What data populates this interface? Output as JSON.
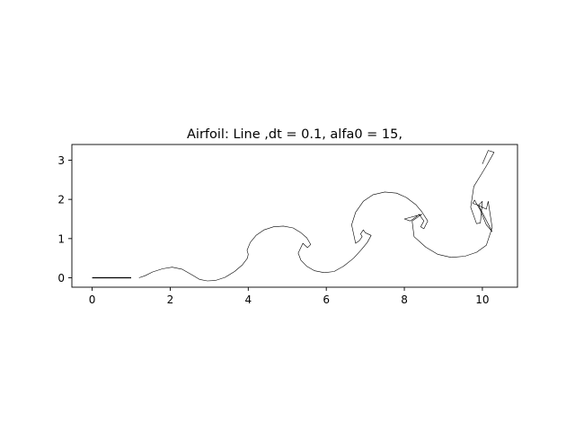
{
  "chart_data": {
    "type": "line",
    "title": "Airfoil: Line  ,dt = 0.1, alfa0 = 15,",
    "xlabel": "",
    "ylabel": "",
    "xlim": [
      -0.52,
      10.9
    ],
    "ylim": [
      -0.24,
      3.4
    ],
    "x_ticks": [
      0,
      2,
      4,
      6,
      8,
      10
    ],
    "y_ticks": [
      0,
      1,
      2,
      3
    ],
    "x_tick_labels": [
      "0",
      "2",
      "4",
      "6",
      "8",
      "10"
    ],
    "y_tick_labels": [
      "0",
      "1",
      "2",
      "3"
    ],
    "grid": false,
    "legend": "none",
    "series": [
      {
        "color": "#000000",
        "x": [
          0.0,
          1.0
        ],
        "y": [
          0.0,
          0.0
        ]
      },
      {
        "color": "#000000",
        "x": [
          1.2,
          1.35,
          1.55,
          1.8,
          2.05,
          2.3,
          2.55,
          2.75,
          2.95,
          3.15,
          3.4,
          3.65,
          3.85,
          3.98,
          4.0,
          3.97,
          4.05,
          4.2,
          4.4,
          4.65,
          4.9,
          5.15,
          5.35,
          5.5,
          5.6,
          5.52,
          5.4,
          5.28,
          5.35,
          5.5,
          5.7,
          5.95,
          6.2,
          6.45,
          6.7,
          6.9,
          7.05,
          7.15,
          7.0,
          6.95,
          6.88,
          6.92,
          6.85,
          6.75,
          6.65,
          6.75,
          6.95,
          7.2,
          7.5,
          7.8,
          8.05,
          8.3,
          8.45,
          8.6,
          8.5,
          8.42,
          8.5,
          8.38,
          8.3,
          8.15,
          8.0,
          8.45,
          8.2,
          8.25,
          8.55,
          8.85,
          9.2,
          9.55,
          9.85,
          10.1,
          10.25,
          10.15,
          10.1,
          9.9,
          9.75,
          9.8,
          9.95,
          10.1,
          10.25,
          9.9,
          10.0,
          9.95,
          9.85,
          9.7,
          9.78,
          9.95,
          10.1,
          10.3,
          10.15,
          10.0
        ],
        "y": [
          0.0,
          0.05,
          0.15,
          0.23,
          0.27,
          0.22,
          0.08,
          -0.04,
          -0.08,
          -0.07,
          0.01,
          0.16,
          0.33,
          0.5,
          0.6,
          0.7,
          0.9,
          1.08,
          1.22,
          1.3,
          1.32,
          1.27,
          1.15,
          1.02,
          0.85,
          0.77,
          0.88,
          0.63,
          0.45,
          0.29,
          0.18,
          0.13,
          0.16,
          0.3,
          0.5,
          0.72,
          0.9,
          1.08,
          1.15,
          1.22,
          1.12,
          1.05,
          0.95,
          0.88,
          1.35,
          1.67,
          1.95,
          2.12,
          2.19,
          2.16,
          2.05,
          1.86,
          1.68,
          1.45,
          1.25,
          1.3,
          1.45,
          1.62,
          1.55,
          1.45,
          1.5,
          1.62,
          1.45,
          1.05,
          0.78,
          0.6,
          0.52,
          0.55,
          0.65,
          0.83,
          1.28,
          1.95,
          1.75,
          1.85,
          1.9,
          1.98,
          1.72,
          1.35,
          1.18,
          1.85,
          1.95,
          1.4,
          1.38,
          1.8,
          2.33,
          2.6,
          2.85,
          3.2,
          3.25,
          2.9
        ]
      }
    ]
  }
}
